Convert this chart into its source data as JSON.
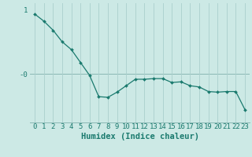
{
  "xlabel": "Humidex (Indice chaleur)",
  "x_values": [
    0,
    1,
    2,
    3,
    4,
    5,
    6,
    7,
    8,
    9,
    10,
    11,
    12,
    13,
    14,
    15,
    16,
    17,
    18,
    19,
    20,
    21,
    22,
    23
  ],
  "y_values": [
    0.93,
    0.82,
    0.68,
    0.5,
    0.38,
    0.18,
    -0.02,
    -0.35,
    -0.36,
    -0.28,
    -0.18,
    -0.08,
    -0.08,
    -0.07,
    -0.07,
    -0.13,
    -0.12,
    -0.18,
    -0.2,
    -0.27,
    -0.28,
    -0.27,
    -0.27,
    -0.55
  ],
  "line_color": "#1a7a6e",
  "marker_color": "#1a7a6e",
  "bg_color": "#cce9e5",
  "grid_color": "#aacfcc",
  "hline_color": "#8ab8b4",
  "tick_color": "#1a7a6e",
  "label_color": "#1a7a6e",
  "xlabel_color": "#1a7a6e",
  "xlim": [
    -0.5,
    23.5
  ],
  "ylim": [
    -0.75,
    1.1
  ],
  "ytick_pos": [
    1.0,
    0.0
  ],
  "ytick_labels": [
    "1",
    "-0"
  ],
  "tick_fontsize": 6.5,
  "label_fontsize": 7.5
}
